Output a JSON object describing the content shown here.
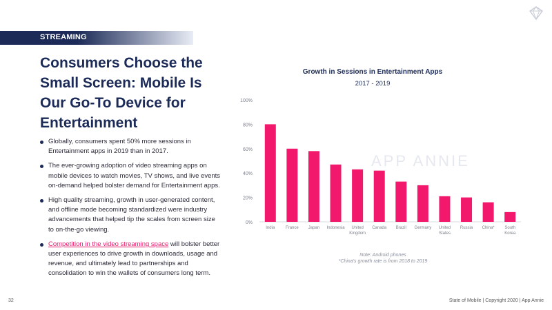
{
  "section": {
    "label": "STREAMING"
  },
  "title": "Consumers Choose the Small Screen: Mobile Is Our Go-To Device for Entertainment",
  "bullets": [
    {
      "text": "Globally, consumers spent 50% more sessions in Entertainment apps in 2019 than in 2017."
    },
    {
      "text": "The ever-growing adoption of video streaming apps on mobile devices to watch movies, TV shows, and live events on-demand helped bolster demand for Entertainment apps."
    },
    {
      "text": "High quality streaming, growth in user-generated content, and offline mode becoming standardized were industry advancements that helped tip the scales from screen size to on-the-go viewing."
    },
    {
      "link": "Competition in the video streaming space",
      "text": " will bolster better user experiences to drive growth in downloads, usage and revenue, and ultimately lead to partnerships and consolidation to win the wallets of consumers long term."
    }
  ],
  "chart_data": {
    "type": "bar",
    "title": "Growth in Sessions in Entertainment Apps",
    "subtitle": "2017 - 2019",
    "categories": [
      "India",
      "France",
      "Japan",
      "Indonesia",
      "United Kingdom",
      "Canada",
      "Brazil",
      "Germany",
      "United States",
      "Russia",
      "China*",
      "South Korea"
    ],
    "category_lines": [
      [
        "India"
      ],
      [
        "France"
      ],
      [
        "Japan"
      ],
      [
        "Indonesia"
      ],
      [
        "United",
        "Kingdom"
      ],
      [
        "Canada"
      ],
      [
        "Brazil"
      ],
      [
        "Germany"
      ],
      [
        "United",
        "States"
      ],
      [
        "Russia"
      ],
      [
        "China*"
      ],
      [
        "South",
        "Korea"
      ]
    ],
    "values": [
      80,
      60,
      58,
      47,
      43,
      42,
      33,
      30,
      21,
      20,
      16,
      8
    ],
    "yticks": [
      "0%",
      "20%",
      "40%",
      "60%",
      "80%",
      "100%"
    ],
    "ylim": [
      0,
      100
    ],
    "bar_color": "#f2186b",
    "watermark": "APP ANNIE",
    "notes": [
      "Note: Android phones",
      "*China's growth rate is from 2018 to 2019"
    ]
  },
  "footer": {
    "page": "32",
    "right": "State of Mobile  |  Copyright 2020  |  App Annie"
  },
  "colors": {
    "navy": "#1b2a57",
    "accent": "#e6186b"
  }
}
